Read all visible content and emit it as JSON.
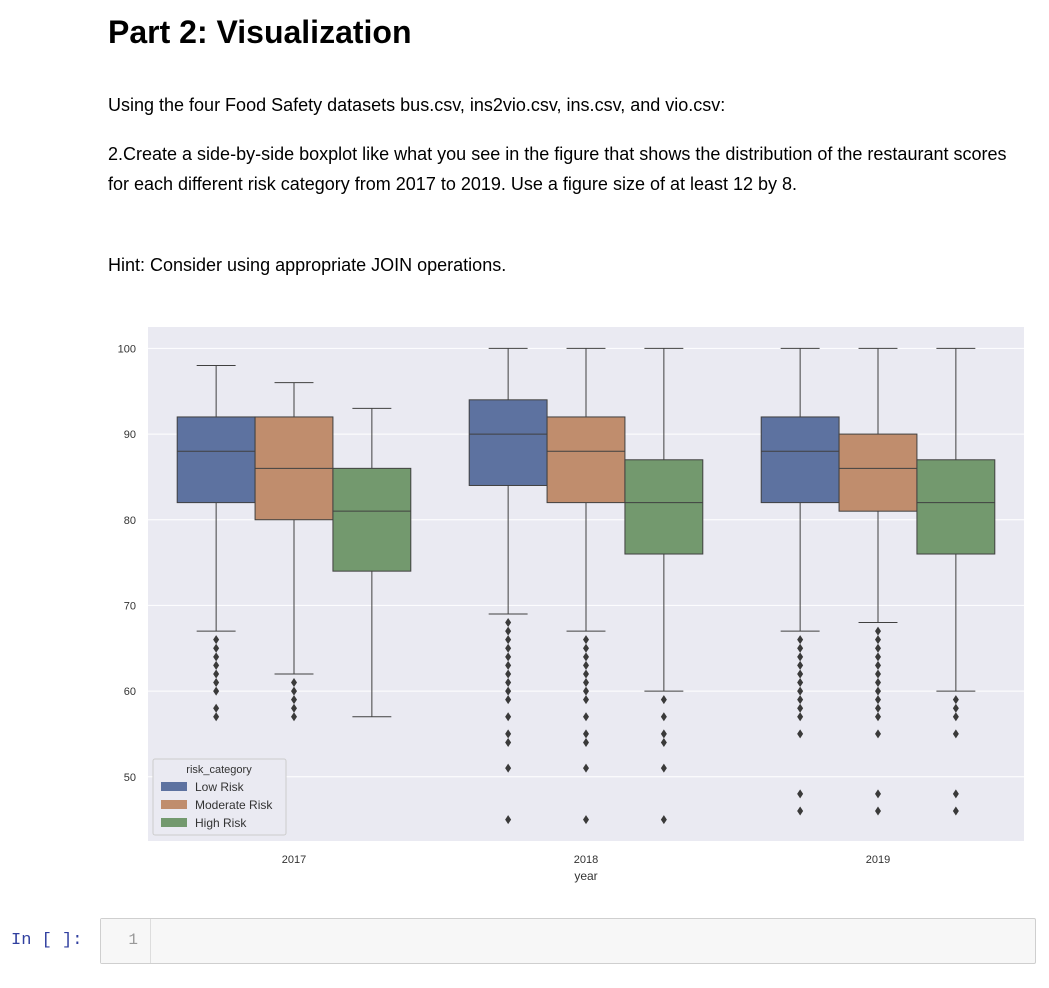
{
  "markdown": {
    "heading": "Part 2: Visualization",
    "paragraph_1": "Using the four Food Safety datasets bus.csv, ins2vio.csv, ins.csv, and vio.csv:",
    "paragraph_2": "2.Create a side-by-side boxplot like what you see in the figure that shows the distribution of the restaurant scores for each different risk category from 2017 to 2019. Use a figure size of at least 12 by 8.",
    "paragraph_3": "Hint: Consider using appropriate JOIN operations."
  },
  "code_cell": {
    "prompt": "In [ ]:",
    "line_number": "1"
  },
  "chart_data": {
    "type": "boxplot",
    "xlabel": "year",
    "ylabel": "",
    "categories": [
      "2017",
      "2018",
      "2019"
    ],
    "yticks": [
      50,
      60,
      70,
      80,
      90,
      100
    ],
    "ylim": [
      42.5,
      102.5
    ],
    "grid": true,
    "legend": {
      "title": "risk_category",
      "placement": "lower-left"
    },
    "series": [
      {
        "name": "Low Risk",
        "color": "#5d72a0",
        "boxes": [
          {
            "whislo": 67,
            "q1": 82,
            "med": 88,
            "q3": 92,
            "whishi": 98,
            "fliers": [
              57,
              58,
              60,
              61,
              62,
              63,
              64,
              65,
              66
            ]
          },
          {
            "whislo": 69,
            "q1": 84,
            "med": 90,
            "q3": 94,
            "whishi": 100,
            "fliers": [
              45,
              51,
              54,
              55,
              57,
              59,
              60,
              61,
              62,
              63,
              64,
              65,
              66,
              67,
              68
            ]
          },
          {
            "whislo": 67,
            "q1": 82,
            "med": 88,
            "q3": 92,
            "whishi": 100,
            "fliers": [
              46,
              48,
              55,
              57,
              58,
              59,
              60,
              61,
              62,
              63,
              64,
              65,
              66
            ]
          }
        ]
      },
      {
        "name": "Moderate Risk",
        "color": "#c08d6d",
        "boxes": [
          {
            "whislo": 62,
            "q1": 80,
            "med": 86,
            "q3": 92,
            "whishi": 96,
            "fliers": [
              57,
              58,
              59,
              60,
              61
            ]
          },
          {
            "whislo": 67,
            "q1": 82,
            "med": 88,
            "q3": 92,
            "whishi": 100,
            "fliers": [
              45,
              51,
              54,
              55,
              57,
              59,
              60,
              61,
              62,
              63,
              64,
              65,
              66
            ]
          },
          {
            "whislo": 68,
            "q1": 81,
            "med": 86,
            "q3": 90,
            "whishi": 100,
            "fliers": [
              46,
              48,
              55,
              57,
              58,
              59,
              60,
              61,
              62,
              63,
              64,
              65,
              66,
              67
            ]
          }
        ]
      },
      {
        "name": "High Risk",
        "color": "#73996e",
        "boxes": [
          {
            "whislo": 57,
            "q1": 74,
            "med": 81,
            "q3": 86,
            "whishi": 93,
            "fliers": []
          },
          {
            "whislo": 60,
            "q1": 76,
            "med": 82,
            "q3": 87,
            "whishi": 100,
            "fliers": [
              45,
              51,
              54,
              55,
              57,
              59
            ]
          },
          {
            "whislo": 60,
            "q1": 76,
            "med": 82,
            "q3": 87,
            "whishi": 100,
            "fliers": [
              46,
              48,
              55,
              57,
              58,
              59
            ]
          }
        ]
      }
    ]
  }
}
